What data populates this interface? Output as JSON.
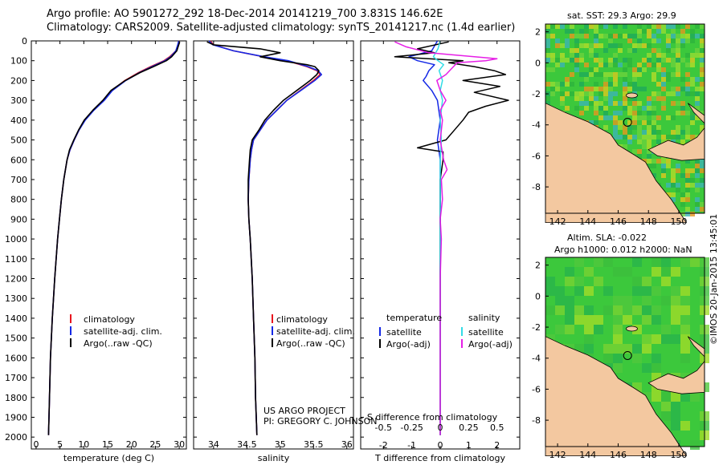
{
  "header": {
    "line1": "Argo profile: AO 5901272_292 18-Dec-2014 20141219_700 3.831S 146.62E",
    "line2": "Climatology: CARS2009. Satellite-adjusted climatology: synTS_20141217.nc (1.4d earlier)"
  },
  "depth_ticks": [
    "0",
    "100",
    "200",
    "300",
    "400",
    "500",
    "600",
    "700",
    "800",
    "900",
    "1000",
    "1100",
    "1200",
    "1300",
    "1400",
    "1500",
    "1600",
    "1700",
    "1800",
    "1900",
    "2000"
  ],
  "colors": {
    "climatology": "#e8141e",
    "satellite": "#1428e6",
    "argo": "#000000",
    "sat_salinity": "#32dce6",
    "argo_salinity": "#e61ee6",
    "land": "#f3c8a0",
    "ocean": "#3cc83c"
  },
  "chart_data": [
    {
      "type": "line",
      "name": "temperature-panel",
      "xlabel": "temperature (deg C)",
      "xlim": [
        -1,
        31.5
      ],
      "ylim": [
        0,
        2060
      ],
      "xtick_labels": [
        "0",
        "5",
        "10",
        "15",
        "20",
        "25",
        "30"
      ],
      "legend": [
        "climatology",
        "satellite-adj. clim.",
        "Argo(..raw -QC)"
      ],
      "series": [
        {
          "name": "climatology",
          "depth": [
            0,
            20,
            50,
            80,
            100,
            130,
            160,
            200,
            250,
            300,
            350,
            400,
            450,
            500,
            550,
            600,
            700,
            800,
            900,
            1000,
            1200,
            1400,
            1600,
            1800,
            1990
          ],
          "values": [
            30.0,
            29.8,
            29.3,
            28.0,
            26.8,
            24.0,
            21.5,
            18.6,
            15.9,
            14.2,
            12.0,
            10.2,
            9.0,
            8.0,
            7.1,
            6.5,
            5.8,
            5.3,
            4.9,
            4.5,
            3.9,
            3.4,
            3.0,
            2.8,
            2.6
          ]
        },
        {
          "name": "satellite-adj. clim.",
          "depth": [
            0,
            20,
            50,
            80,
            100,
            130,
            160,
            200,
            250,
            300,
            350,
            400,
            450,
            500,
            550,
            600,
            700,
            800,
            900,
            1000,
            1200,
            1400,
            1600,
            1800,
            1990
          ],
          "values": [
            29.9,
            29.7,
            29.3,
            28.2,
            27.0,
            24.3,
            21.7,
            18.8,
            16.0,
            14.3,
            12.1,
            10.3,
            9.0,
            8.0,
            7.1,
            6.5,
            5.8,
            5.3,
            4.9,
            4.5,
            3.9,
            3.4,
            3.0,
            2.8,
            2.6
          ]
        },
        {
          "name": "Argo(..raw -QC)",
          "depth": [
            5,
            20,
            50,
            80,
            100,
            130,
            160,
            200,
            250,
            300,
            350,
            400,
            450,
            500,
            550,
            600,
            700,
            800,
            900,
            1000,
            1200,
            1400,
            1600,
            1800,
            1990
          ],
          "values": [
            30.1,
            29.9,
            29.5,
            28.4,
            27.3,
            24.6,
            21.8,
            18.7,
            15.7,
            14.0,
            11.9,
            10.1,
            8.9,
            7.9,
            7.0,
            6.5,
            5.8,
            5.3,
            4.9,
            4.5,
            3.9,
            3.4,
            3.0,
            2.8,
            2.6
          ]
        }
      ]
    },
    {
      "type": "line",
      "name": "salinity-panel",
      "xlabel": "salinity",
      "xlim": [
        33.7,
        36.1
      ],
      "ylim": [
        0,
        2060
      ],
      "xtick_labels": [
        "34",
        "34.5",
        "35",
        "35.5",
        "36"
      ],
      "legend": [
        "climatology",
        "satellite-adj. clim.",
        "Argo(..raw -QC)"
      ],
      "annotation": [
        "US ARGO PROJECT",
        "PI: GREGORY C. JOHNSON"
      ],
      "series": [
        {
          "name": "climatology",
          "depth": [
            0,
            20,
            50,
            80,
            100,
            130,
            150,
            170,
            200,
            250,
            300,
            350,
            400,
            450,
            500,
            550,
            600,
            700,
            800,
            900,
            1000,
            1200,
            1400,
            1600,
            1800,
            1990
          ],
          "values": [
            33.95,
            34.0,
            34.3,
            34.75,
            35.1,
            35.4,
            35.55,
            35.6,
            35.5,
            35.3,
            35.1,
            34.95,
            34.8,
            34.7,
            34.6,
            34.57,
            34.55,
            34.53,
            34.52,
            34.53,
            34.55,
            34.58,
            34.6,
            34.62,
            34.63,
            34.65
          ]
        },
        {
          "name": "satellite-adj. clim.",
          "depth": [
            0,
            20,
            50,
            80,
            100,
            130,
            150,
            170,
            200,
            250,
            300,
            350,
            400,
            450,
            500,
            550,
            600,
            700,
            800,
            900,
            1000,
            1200,
            1400,
            1600,
            1800,
            1990
          ],
          "values": [
            33.93,
            33.99,
            34.3,
            34.76,
            35.12,
            35.42,
            35.57,
            35.62,
            35.52,
            35.31,
            35.1,
            34.95,
            34.8,
            34.7,
            34.6,
            34.57,
            34.55,
            34.53,
            34.52,
            34.53,
            34.55,
            34.58,
            34.6,
            34.62,
            34.63,
            34.65
          ]
        },
        {
          "name": "Argo(..raw -QC)",
          "depth": [
            5,
            20,
            40,
            60,
            80,
            100,
            120,
            130,
            150,
            170,
            200,
            250,
            300,
            350,
            400,
            450,
            500,
            550,
            600,
            700,
            800,
            900,
            1000,
            1200,
            1400,
            1600,
            1800,
            1990
          ],
          "values": [
            33.9,
            34.0,
            34.7,
            35.0,
            34.7,
            35.0,
            35.4,
            35.52,
            35.58,
            35.55,
            35.45,
            35.25,
            35.05,
            34.9,
            34.77,
            34.68,
            34.58,
            34.55,
            34.54,
            34.52,
            34.52,
            34.53,
            34.55,
            34.58,
            34.6,
            34.62,
            34.63,
            34.65
          ]
        }
      ]
    },
    {
      "type": "line",
      "name": "difference-panel",
      "xlabel_top": "S difference from climatology",
      "xlabel_bottom": "T difference from climatology",
      "xlim_T": [
        -2.8,
        2.8
      ],
      "xlim_S": [
        -0.7,
        0.7
      ],
      "ylim": [
        0,
        2060
      ],
      "xtick_labels_T": [
        "-2",
        "-1",
        "0",
        "1",
        "2"
      ],
      "xtick_labels_S": [
        "-0.5",
        "-0.25",
        "0",
        "0.25",
        "0.5"
      ],
      "legend": {
        "temperature_heading": "temperature",
        "salinity_heading": "salinity",
        "entries": [
          "satellite",
          "Argo(-adj)",
          "satellite",
          "Argo(-adj)"
        ]
      },
      "series": [
        {
          "name": "T satellite",
          "axis": "T",
          "depth": [
            0,
            50,
            80,
            100,
            120,
            150,
            180,
            200,
            250,
            300,
            400,
            500,
            600,
            800,
            1000,
            1400,
            1990
          ],
          "values": [
            -0.1,
            -0.3,
            -1.1,
            -0.8,
            -0.2,
            -0.4,
            -0.5,
            -0.6,
            -0.3,
            -0.1,
            0.0,
            -0.1,
            0.0,
            0.0,
            0.0,
            0.0,
            0.0
          ]
        },
        {
          "name": "T Argo(-adj)",
          "axis": "T",
          "depth": [
            5,
            40,
            60,
            80,
            100,
            110,
            130,
            150,
            170,
            200,
            230,
            260,
            300,
            330,
            360,
            400,
            450,
            500,
            540,
            560,
            600,
            700,
            800,
            1000,
            1100,
            1200,
            1400,
            1990
          ],
          "values": [
            0.3,
            -0.8,
            -0.2,
            -1.6,
            0.8,
            0.3,
            1.2,
            1.9,
            2.3,
            0.8,
            2.1,
            1.2,
            2.4,
            1.6,
            1.0,
            0.8,
            0.5,
            0.2,
            -0.8,
            0.1,
            0.1,
            0.0,
            0.0,
            0.0,
            0.0,
            0.0,
            0.0,
            0.0
          ]
        },
        {
          "name": "S satellite",
          "axis": "S",
          "depth": [
            0,
            40,
            80,
            100,
            120,
            150,
            200,
            250,
            300,
            400,
            500,
            600,
            800,
            1000,
            1400,
            1990
          ],
          "values": [
            0.0,
            -0.02,
            -0.06,
            -0.02,
            0.03,
            -0.01,
            0.02,
            0.0,
            0.02,
            0.0,
            0.01,
            0.0,
            0.0,
            0.0,
            0.0,
            0.0
          ]
        },
        {
          "name": "S Argo(-adj)",
          "axis": "S",
          "depth": [
            5,
            30,
            60,
            80,
            90,
            100,
            110,
            140,
            170,
            200,
            250,
            300,
            350,
            400,
            500,
            600,
            650,
            700,
            800,
            900,
            1000,
            1200,
            1400,
            1990
          ],
          "values": [
            -0.4,
            -0.3,
            -0.1,
            0.3,
            0.5,
            0.4,
            0.15,
            0.1,
            0.05,
            -0.03,
            0.0,
            0.05,
            0.0,
            0.02,
            0.0,
            0.03,
            0.06,
            0.01,
            0.02,
            0.0,
            0.01,
            0.0,
            0.0,
            0.0
          ]
        }
      ]
    }
  ],
  "maps": [
    {
      "title": "sat. SST: 29.3 Argo: 29.9",
      "x_tick_labels": [
        "142",
        "144",
        "146",
        "148",
        "150"
      ],
      "y_tick_labels": [
        "2",
        "0",
        "-2",
        "-4",
        "-6",
        "-8"
      ],
      "profile_lon": 146.62,
      "profile_lat": -3.831
    },
    {
      "title_line1": "Altim. SLA: -0.022",
      "title_line2": "Argo h1000: 0.012 h2000: NaN",
      "x_tick_labels": [
        "142",
        "144",
        "146",
        "148",
        "150"
      ],
      "y_tick_labels": [
        "2",
        "0",
        "-2",
        "-4",
        "-6",
        "-8"
      ],
      "profile_lon": 146.62,
      "profile_lat": -3.831
    }
  ],
  "stamp": "©IMOS 20-Jan-2015 13:45:01"
}
